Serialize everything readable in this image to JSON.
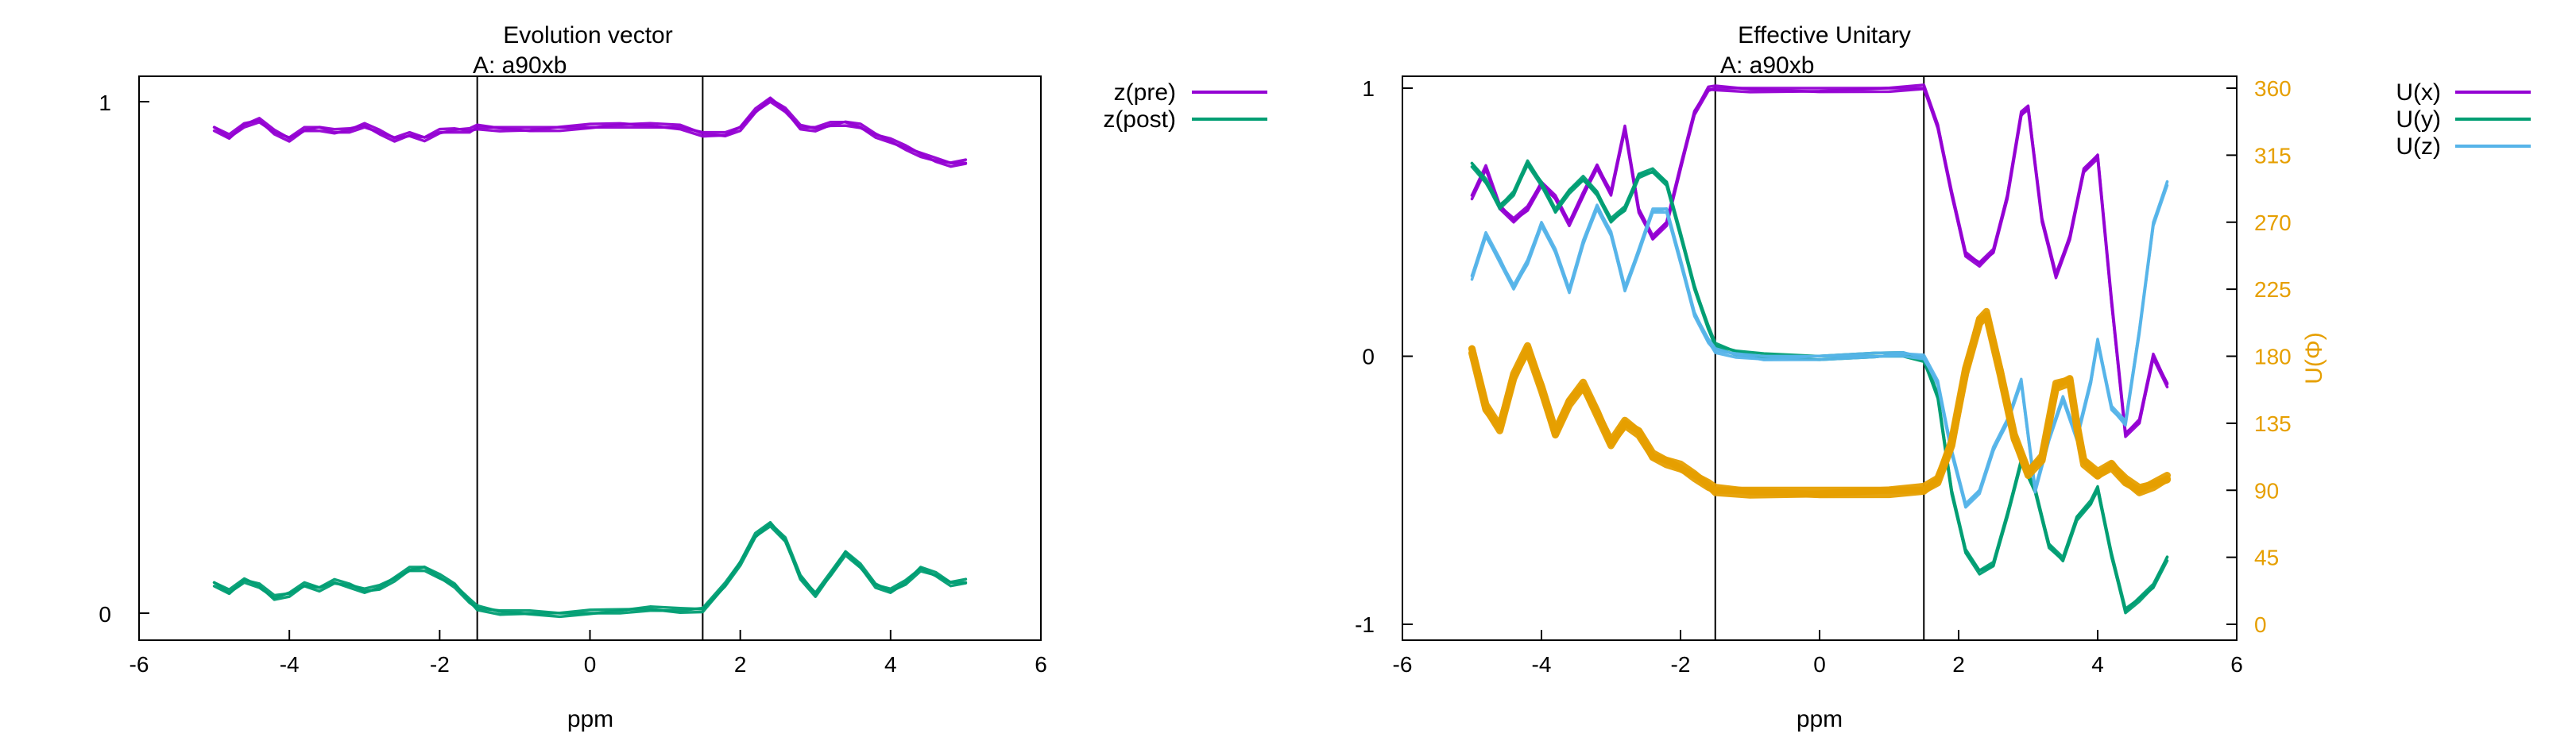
{
  "chart_data": [
    {
      "type": "line",
      "title": "Evolution vector",
      "subtitle": "A: a90xb",
      "xlabel": "ppm",
      "ylabel": "",
      "xlim": [
        -6,
        6
      ],
      "ylim": [
        0,
        1
      ],
      "xticks": [
        "-6",
        "-4",
        "-2",
        "0",
        "2",
        "4",
        "6"
      ],
      "yticks": [
        "0",
        "1"
      ],
      "vlines": [
        -1.5,
        1.5
      ],
      "legend_position": "top-right",
      "grid": false,
      "series": [
        {
          "name": "z(pre)",
          "color": "#9400d3",
          "x": [
            -5.0,
            -4.8,
            -4.6,
            -4.4,
            -4.2,
            -4.0,
            -3.8,
            -3.6,
            -3.4,
            -3.2,
            -3.0,
            -2.8,
            -2.6,
            -2.4,
            -2.2,
            -2.0,
            -1.8,
            -1.6,
            -1.5,
            -1.2,
            -0.8,
            -0.4,
            0.0,
            0.4,
            0.8,
            1.2,
            1.5,
            1.8,
            2.0,
            2.2,
            2.4,
            2.6,
            2.8,
            3.0,
            3.2,
            3.4,
            3.6,
            3.8,
            4.0,
            4.2,
            4.4,
            4.6,
            4.8,
            5.0
          ],
          "y": [
            0.95,
            0.93,
            0.95,
            0.96,
            0.94,
            0.93,
            0.95,
            0.95,
            0.94,
            0.94,
            0.95,
            0.94,
            0.93,
            0.94,
            0.93,
            0.94,
            0.94,
            0.94,
            0.95,
            0.95,
            0.95,
            0.95,
            0.95,
            0.95,
            0.95,
            0.95,
            0.94,
            0.94,
            0.95,
            0.98,
            1.0,
            0.98,
            0.95,
            0.95,
            0.96,
            0.96,
            0.95,
            0.93,
            0.92,
            0.91,
            0.9,
            0.89,
            0.88,
            0.88
          ]
        },
        {
          "name": "z(post)",
          "color": "#009e73",
          "x": [
            -5.0,
            -4.8,
            -4.6,
            -4.4,
            -4.2,
            -4.0,
            -3.8,
            -3.6,
            -3.4,
            -3.2,
            -3.0,
            -2.8,
            -2.6,
            -2.4,
            -2.2,
            -2.0,
            -1.8,
            -1.6,
            -1.5,
            -1.2,
            -0.8,
            -0.4,
            0.0,
            0.4,
            0.8,
            1.2,
            1.5,
            1.8,
            2.0,
            2.2,
            2.4,
            2.6,
            2.8,
            3.0,
            3.2,
            3.4,
            3.6,
            3.8,
            4.0,
            4.2,
            4.4,
            4.6,
            4.8,
            5.0
          ],
          "y": [
            0.06,
            0.04,
            0.06,
            0.05,
            0.03,
            0.04,
            0.06,
            0.05,
            0.06,
            0.05,
            0.04,
            0.05,
            0.07,
            0.09,
            0.09,
            0.07,
            0.05,
            0.02,
            0.01,
            0.005,
            0.005,
            0.0,
            0.0,
            0.0,
            0.005,
            0.005,
            0.01,
            0.06,
            0.1,
            0.15,
            0.17,
            0.14,
            0.07,
            0.04,
            0.08,
            0.12,
            0.09,
            0.05,
            0.04,
            0.06,
            0.09,
            0.08,
            0.06,
            0.06
          ]
        }
      ]
    },
    {
      "type": "line",
      "title": "Effective Unitary",
      "subtitle": "A: a90xb",
      "xlabel": "ppm",
      "ylabel": "",
      "y2label": "U(Φ)",
      "xlim": [
        -6,
        6
      ],
      "ylim": [
        -1,
        1
      ],
      "y2lim": [
        0,
        360
      ],
      "xticks": [
        "-6",
        "-4",
        "-2",
        "0",
        "2",
        "4",
        "6"
      ],
      "yticks": [
        "-1",
        "0",
        "1"
      ],
      "y2ticks": [
        "0",
        "45",
        "90",
        "135",
        "180",
        "225",
        "270",
        "315",
        "360"
      ],
      "vlines": [
        -1.5,
        1.5
      ],
      "legend_position": "top-right",
      "grid": false,
      "series": [
        {
          "name": "U(x)",
          "color": "#9400d3",
          "axis": "left",
          "x": [
            -5.0,
            -4.8,
            -4.6,
            -4.4,
            -4.2,
            -4.0,
            -3.8,
            -3.6,
            -3.4,
            -3.2,
            -3.0,
            -2.8,
            -2.6,
            -2.4,
            -2.2,
            -2.0,
            -1.8,
            -1.6,
            -1.5,
            -1.0,
            0.0,
            1.0,
            1.5,
            1.7,
            1.9,
            2.1,
            2.3,
            2.5,
            2.7,
            2.9,
            3.0,
            3.2,
            3.4,
            3.6,
            3.8,
            4.0,
            4.2,
            4.4,
            4.6,
            4.8,
            5.0
          ],
          "y": [
            0.6,
            0.7,
            0.55,
            0.5,
            0.55,
            0.65,
            0.6,
            0.5,
            0.6,
            0.7,
            0.6,
            0.85,
            0.55,
            0.45,
            0.5,
            0.7,
            0.9,
            0.99,
            1.0,
            1.0,
            1.0,
            1.0,
            1.0,
            0.85,
            0.6,
            0.38,
            0.35,
            0.4,
            0.6,
            0.9,
            0.92,
            0.5,
            0.3,
            0.45,
            0.7,
            0.75,
            0.2,
            -0.3,
            -0.25,
            0.0,
            -0.1
          ]
        },
        {
          "name": "U(y)",
          "color": "#009e73",
          "axis": "left",
          "x": [
            -5.0,
            -4.8,
            -4.6,
            -4.4,
            -4.2,
            -4.0,
            -3.8,
            -3.6,
            -3.4,
            -3.2,
            -3.0,
            -2.8,
            -2.6,
            -2.4,
            -2.2,
            -2.0,
            -1.8,
            -1.6,
            -1.5,
            -1.2,
            -0.8,
            0.0,
            0.8,
            1.2,
            1.5,
            1.7,
            1.9,
            2.1,
            2.3,
            2.5,
            2.7,
            2.9,
            3.1,
            3.3,
            3.5,
            3.7,
            3.9,
            4.0,
            4.2,
            4.4,
            4.6,
            4.8,
            5.0
          ],
          "y": [
            0.72,
            0.65,
            0.55,
            0.6,
            0.72,
            0.65,
            0.55,
            0.62,
            0.66,
            0.6,
            0.5,
            0.55,
            0.68,
            0.7,
            0.65,
            0.45,
            0.25,
            0.1,
            0.04,
            0.02,
            0.01,
            0.0,
            0.0,
            0.0,
            -0.02,
            -0.15,
            -0.5,
            -0.72,
            -0.8,
            -0.78,
            -0.6,
            -0.4,
            -0.5,
            -0.7,
            -0.75,
            -0.6,
            -0.55,
            -0.5,
            -0.75,
            -0.95,
            -0.9,
            -0.85,
            -0.75
          ]
        },
        {
          "name": "U(z)",
          "color": "#56b4e9",
          "axis": "left",
          "x": [
            -5.0,
            -4.8,
            -4.6,
            -4.4,
            -4.2,
            -4.0,
            -3.8,
            -3.6,
            -3.4,
            -3.2,
            -3.0,
            -2.8,
            -2.6,
            -2.4,
            -2.2,
            -2.0,
            -1.8,
            -1.6,
            -1.5,
            -1.2,
            -0.8,
            0.0,
            0.8,
            1.2,
            1.5,
            1.7,
            1.9,
            2.1,
            2.3,
            2.5,
            2.7,
            2.9,
            3.1,
            3.3,
            3.5,
            3.7,
            3.9,
            4.0,
            4.2,
            4.4,
            4.6,
            4.8,
            5.0
          ],
          "y": [
            0.3,
            0.45,
            0.35,
            0.25,
            0.35,
            0.5,
            0.4,
            0.25,
            0.42,
            0.55,
            0.45,
            0.25,
            0.4,
            0.55,
            0.55,
            0.35,
            0.15,
            0.05,
            0.02,
            0.01,
            0.0,
            0.0,
            0.0,
            0.0,
            -0.01,
            -0.1,
            -0.35,
            -0.55,
            -0.5,
            -0.35,
            -0.25,
            -0.1,
            -0.5,
            -0.3,
            -0.15,
            -0.3,
            -0.1,
            0.05,
            -0.2,
            -0.25,
            0.1,
            0.5,
            0.65
          ]
        },
        {
          "name": "U(Φ)",
          "color": "#e69f00",
          "axis": "right",
          "x": [
            -5.0,
            -4.8,
            -4.6,
            -4.4,
            -4.2,
            -4.0,
            -3.8,
            -3.6,
            -3.4,
            -3.2,
            -3.0,
            -2.8,
            -2.6,
            -2.4,
            -2.2,
            -2.0,
            -1.8,
            -1.6,
            -1.5,
            -1.0,
            0.0,
            1.0,
            1.5,
            1.7,
            1.9,
            2.1,
            2.3,
            2.4,
            2.6,
            2.8,
            3.0,
            3.2,
            3.4,
            3.6,
            3.7,
            3.8,
            4.0,
            4.2,
            4.4,
            4.6,
            4.8,
            5.0
          ],
          "y": [
            185,
            145,
            130,
            165,
            185,
            160,
            130,
            150,
            160,
            140,
            120,
            135,
            130,
            115,
            110,
            105,
            98,
            92,
            90,
            90,
            90,
            90,
            90,
            95,
            120,
            170,
            205,
            210,
            170,
            125,
            100,
            110,
            160,
            165,
            135,
            110,
            100,
            105,
            95,
            90,
            95,
            100
          ]
        }
      ]
    }
  ]
}
